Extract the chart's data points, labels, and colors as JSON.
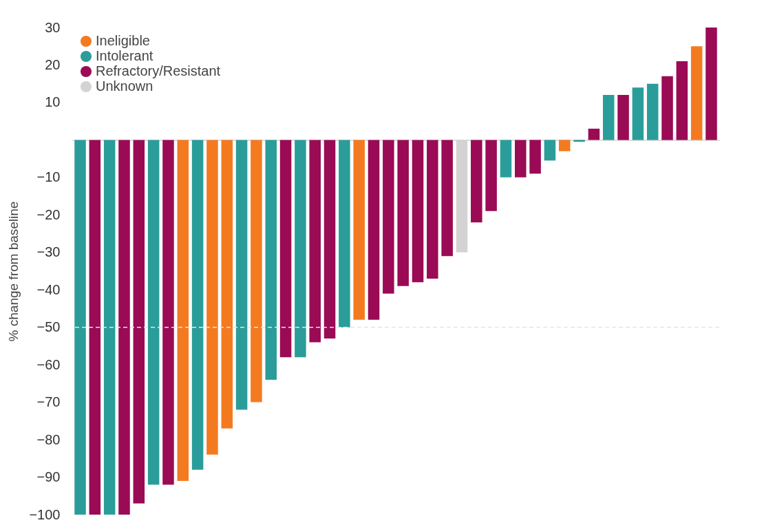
{
  "chart_data": {
    "type": "bar",
    "ylabel": "% change from baseline",
    "stacked": true,
    "legend": "top left",
    "tick_labels": "y",
    "grid": false,
    "categories": [
      null,
      null,
      null,
      null,
      null,
      null,
      null,
      null,
      null,
      null,
      null,
      null,
      null,
      null,
      null,
      null,
      null,
      null,
      null,
      null,
      null,
      null,
      null,
      null,
      null,
      null,
      null,
      null,
      null,
      null,
      null,
      null,
      null,
      null,
      null,
      null,
      null,
      null,
      null,
      null,
      null,
      null,
      null,
      null
    ],
    "ylim": [
      -100,
      30
    ],
    "yticks": [
      30,
      20,
      10,
      -10,
      -20,
      -30,
      -40,
      -50,
      -60,
      -70,
      -80,
      -90,
      -100
    ],
    "ref_lines": [
      {
        "axis": "y",
        "value": -50,
        "color": "#e6e6e6",
        "line_style": "dashed"
      }
    ],
    "series": [
      {
        "name": "Ineligible",
        "color": "#f47a20",
        "values": [
          null,
          null,
          null,
          null,
          null,
          null,
          null,
          -91,
          null,
          -84,
          -77,
          null,
          -70,
          null,
          null,
          null,
          null,
          null,
          null,
          -48,
          null,
          null,
          null,
          null,
          null,
          null,
          null,
          null,
          null,
          null,
          null,
          null,
          null,
          -3,
          null,
          null,
          null,
          null,
          null,
          null,
          null,
          null,
          25,
          null
        ]
      },
      {
        "name": "Intolerant",
        "color": "#2a9d9a",
        "values": [
          -100,
          null,
          -100,
          null,
          null,
          -92,
          null,
          null,
          -88,
          null,
          null,
          -72,
          null,
          -64,
          null,
          -58,
          null,
          null,
          -50,
          null,
          null,
          null,
          null,
          null,
          null,
          null,
          null,
          null,
          null,
          -10,
          null,
          null,
          -5.5,
          null,
          -0.5,
          null,
          12,
          null,
          14,
          15,
          null,
          null,
          null,
          null
        ]
      },
      {
        "name": "Refractory/Resistant",
        "color": "#9a0a55",
        "values": [
          null,
          -100,
          null,
          -100,
          -97,
          null,
          -92,
          null,
          null,
          null,
          null,
          null,
          null,
          null,
          -58,
          null,
          -54,
          -53,
          null,
          null,
          -48,
          -41,
          -39,
          -38,
          -37,
          -31,
          null,
          -22,
          -19,
          null,
          -10,
          -9,
          null,
          null,
          null,
          3,
          null,
          12,
          null,
          null,
          17,
          21,
          null,
          30
        ]
      },
      {
        "name": "Unknown",
        "color": "#d3d3d3",
        "values": [
          null,
          null,
          null,
          null,
          null,
          null,
          null,
          null,
          null,
          null,
          null,
          null,
          null,
          null,
          null,
          null,
          null,
          null,
          null,
          null,
          null,
          null,
          null,
          null,
          null,
          null,
          -30,
          null,
          null,
          null,
          null,
          null,
          null,
          null,
          null,
          null,
          null,
          null,
          null,
          null,
          null,
          null,
          null,
          null
        ]
      }
    ]
  }
}
